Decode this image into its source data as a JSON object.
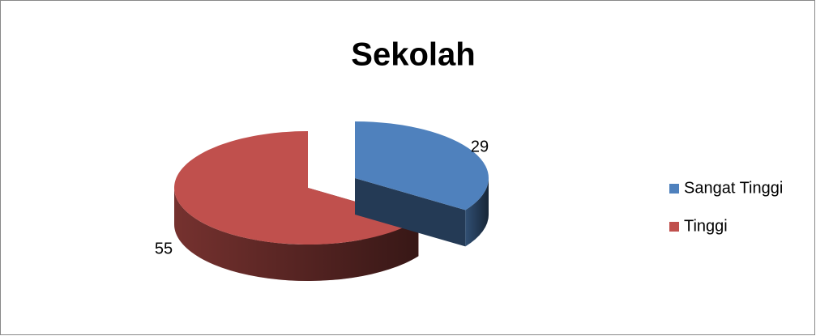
{
  "chart_data": {
    "type": "pie",
    "title": "Sekolah",
    "categories": [
      "Sangat Tinggi",
      "Tinggi"
    ],
    "values": [
      29,
      55
    ],
    "colors": [
      "#4f81bd",
      "#c0504d"
    ],
    "legend": "right"
  }
}
